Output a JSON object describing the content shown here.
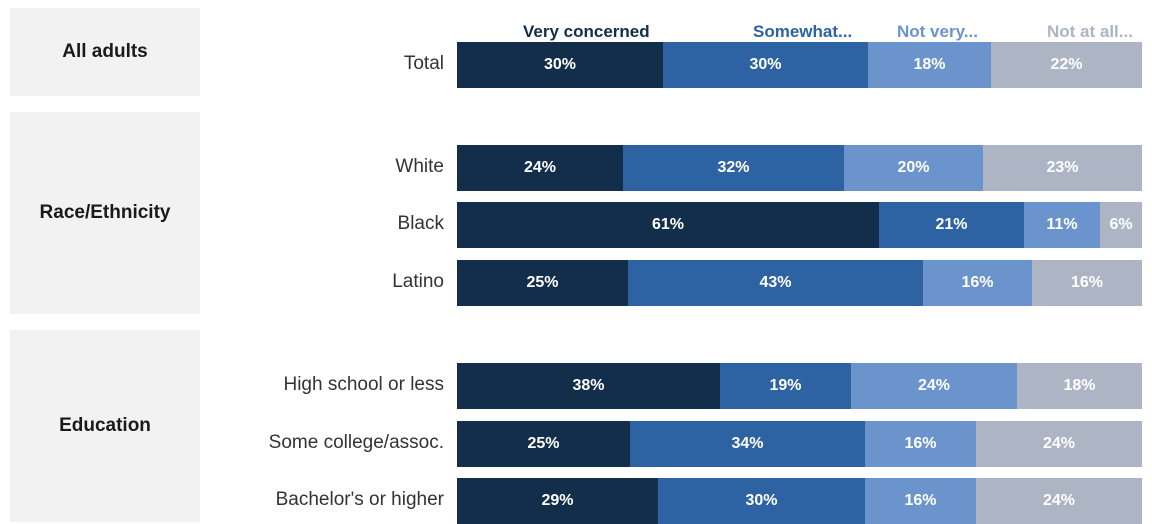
{
  "chart_data": {
    "type": "bar",
    "orientation": "horizontal",
    "stacked": true,
    "legend": [
      "Very concerned",
      "Somewhat...",
      "Not very...",
      "Not at all..."
    ],
    "colors": [
      "#132e4a",
      "#2e63a3",
      "#6b94cc",
      "#adb5c5"
    ],
    "groups": [
      {
        "name": "All adults",
        "rows": [
          {
            "label": "Total",
            "values": [
              30,
              30,
              18,
              22
            ]
          }
        ]
      },
      {
        "name": "Race/Ethnicity",
        "rows": [
          {
            "label": "White",
            "values": [
              24,
              32,
              20,
              23
            ]
          },
          {
            "label": "Black",
            "values": [
              61,
              21,
              11,
              6
            ]
          },
          {
            "label": "Latino",
            "values": [
              25,
              43,
              16,
              16
            ]
          }
        ]
      },
      {
        "name": "Education",
        "rows": [
          {
            "label": "High school or less",
            "values": [
              38,
              19,
              24,
              18
            ]
          },
          {
            "label": "Some college/assoc.",
            "values": [
              25,
              34,
              16,
              24
            ]
          },
          {
            "label": "Bachelor's or higher",
            "values": [
              29,
              30,
              16,
              24
            ]
          }
        ]
      }
    ]
  }
}
